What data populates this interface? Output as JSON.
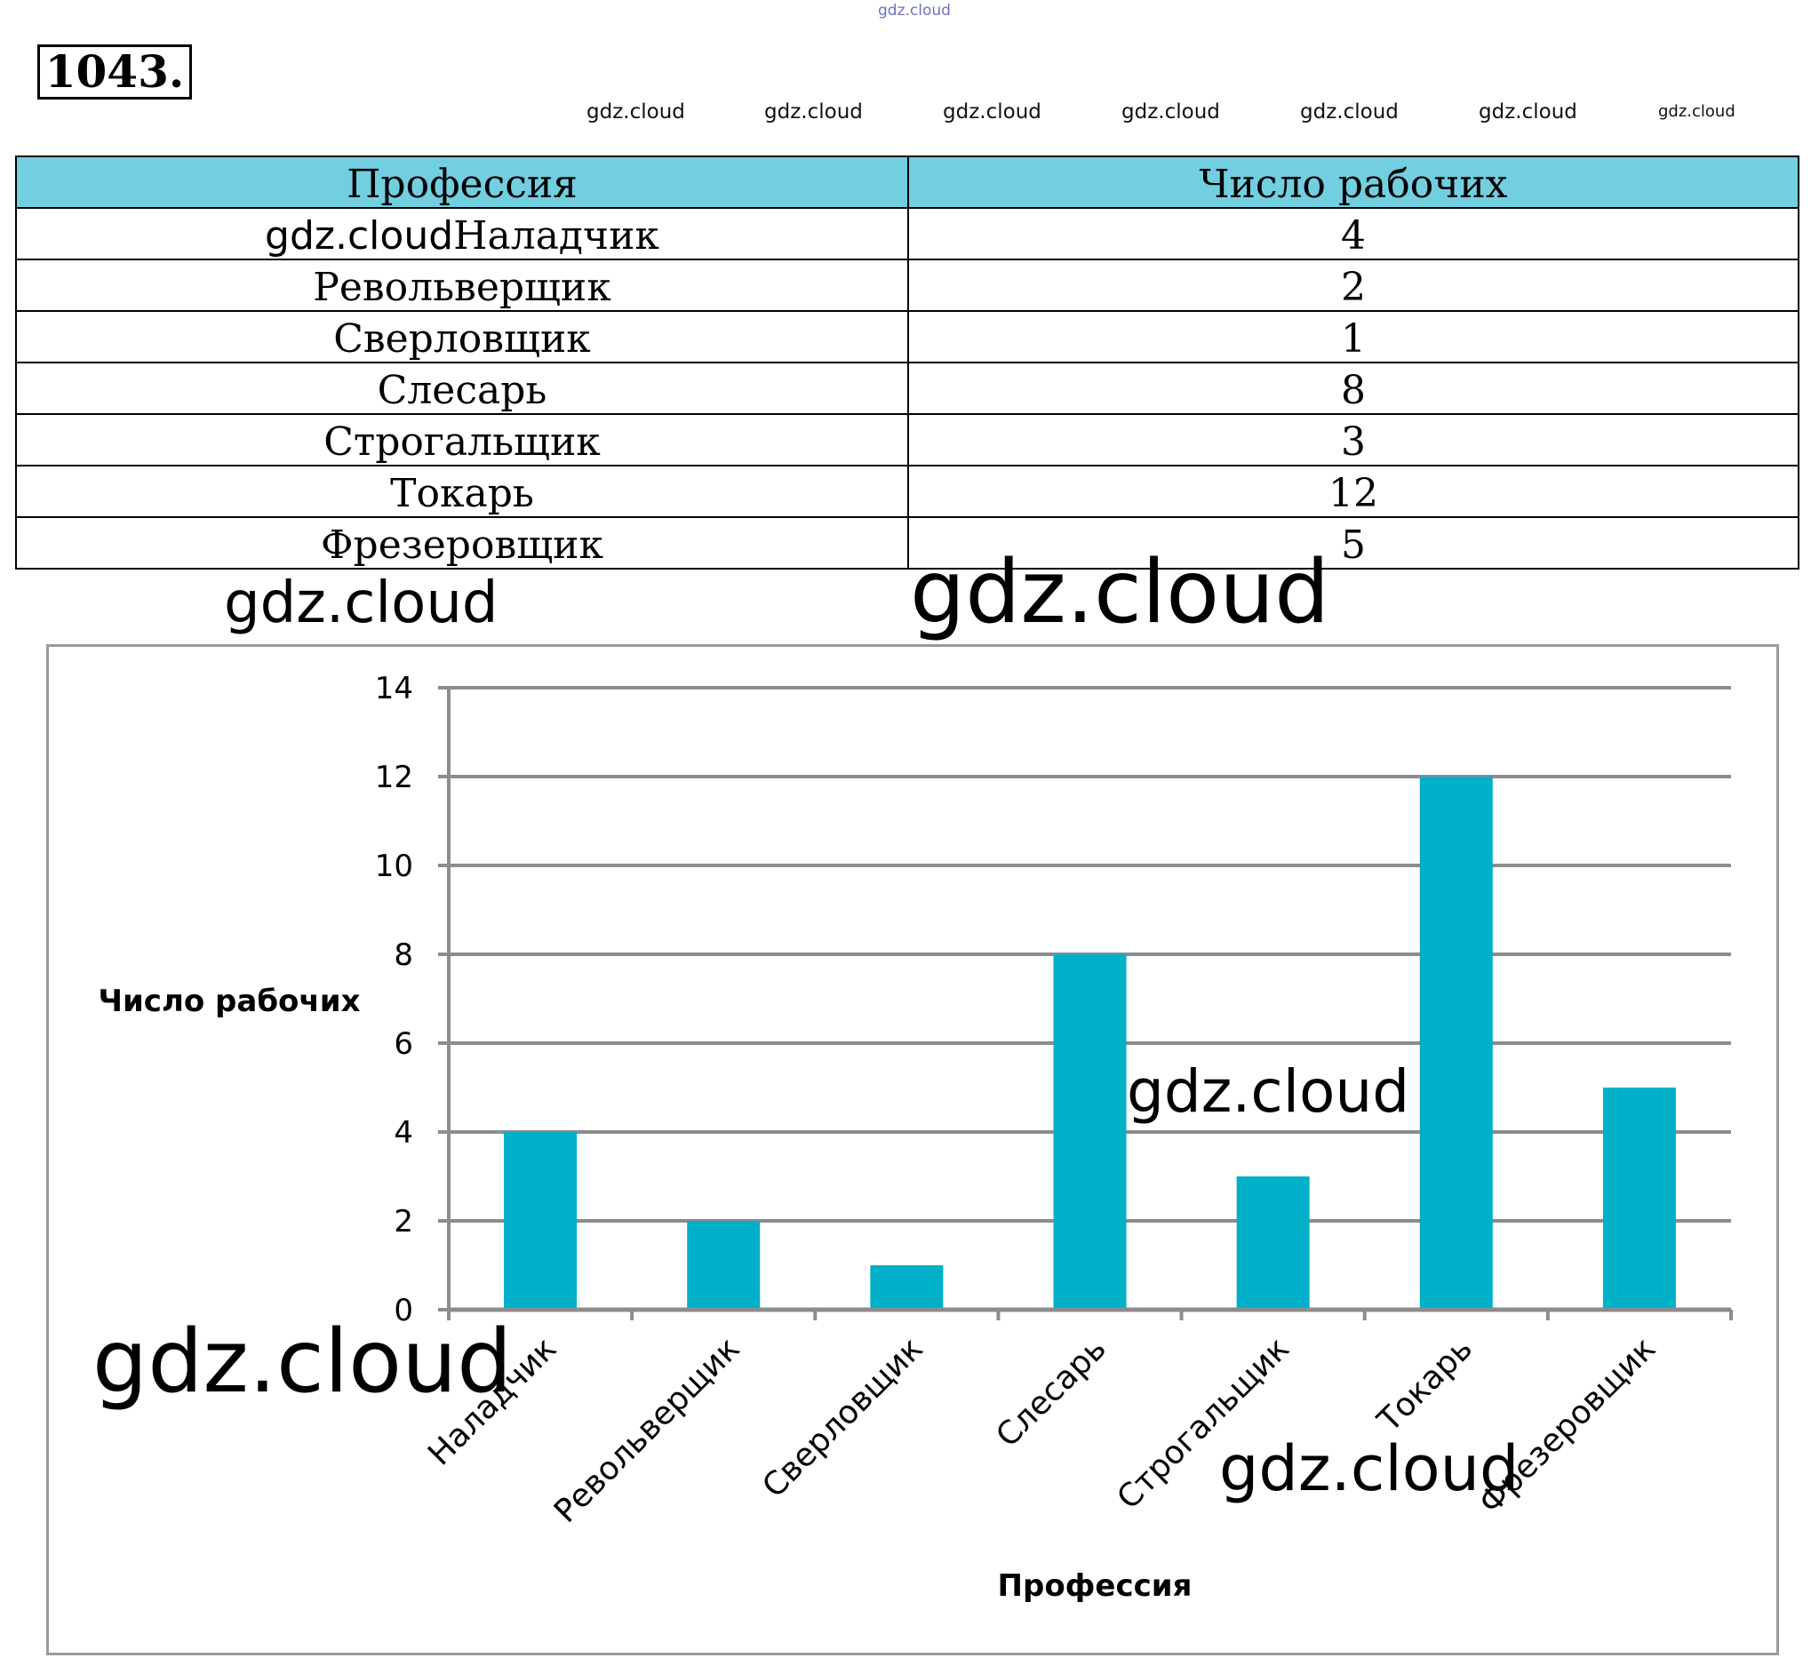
{
  "header": {
    "top_watermark": "gdz.cloud",
    "problem_number": "1043."
  },
  "watermarks": {
    "row": [
      "gdz.cloud",
      "gdz.cloud",
      "gdz.cloud",
      "gdz.cloud",
      "gdz.cloud",
      "gdz.cloud",
      "gdz.cloud"
    ],
    "table_inline": "gdz.cloud",
    "big_left": "gdz.cloud",
    "big_center": "gdz.cloud",
    "chart_mid": "gdz.cloud",
    "chart_left": "gdz.cloud",
    "chart_bottom": "gdz.cloud"
  },
  "table": {
    "headers": [
      "Профессия",
      "Число рабочих"
    ],
    "rows": [
      {
        "name": "Наладчик",
        "value": "4"
      },
      {
        "name": "Револьверщик",
        "value": "2"
      },
      {
        "name": "Сверловщик",
        "value": "1"
      },
      {
        "name": "Слесарь",
        "value": "8"
      },
      {
        "name": "Строгальщик",
        "value": "3"
      },
      {
        "name": "Токарь",
        "value": "12"
      },
      {
        "name": "Фрезеровщик",
        "value": "5"
      }
    ]
  },
  "chart_data": {
    "type": "bar",
    "categories": [
      "Наладчик",
      "Револьверщик",
      "Сверловщик",
      "Слесарь",
      "Строгальщик",
      "Токарь",
      "Фрезеровщик"
    ],
    "values": [
      4,
      2,
      1,
      8,
      3,
      12,
      5
    ],
    "xlabel": "Профессия",
    "ylabel": "Число рабочих",
    "ylim": [
      0,
      14
    ],
    "yticks": [
      0,
      2,
      4,
      6,
      8,
      10,
      12,
      14
    ],
    "grid": true,
    "legend": "none",
    "bar_color": "#00b0c8",
    "grid_color": "#8c8c8c"
  }
}
